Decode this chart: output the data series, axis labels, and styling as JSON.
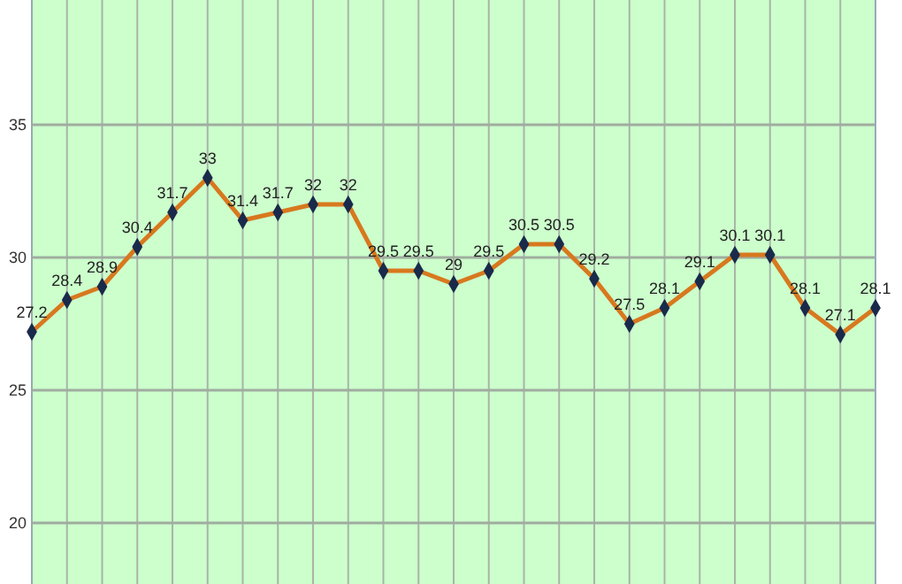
{
  "chart_data": {
    "type": "line",
    "categories": [
      null,
      null,
      null,
      null,
      null,
      null,
      null,
      null,
      null,
      null,
      null,
      null,
      null,
      null,
      null,
      null,
      null,
      null,
      null,
      null,
      null,
      null,
      null,
      null,
      null
    ],
    "series": [
      {
        "color": "#d8781e",
        "values": [
          27.2,
          28.4,
          28.9,
          30.4,
          31.7,
          33,
          31.4,
          31.7,
          32,
          32,
          29.5,
          29.5,
          29,
          29.5,
          30.5,
          30.5,
          29.2,
          27.5,
          28.1,
          29.1,
          30.1,
          30.1,
          28.1,
          27.1,
          28.1
        ]
      }
    ],
    "ylim": [
      17.7,
      39.7
    ],
    "yticks": [
      20,
      25,
      30,
      35
    ],
    "grid": true,
    "marker": "diamond",
    "data_labels": true,
    "line_style": "solid"
  }
}
